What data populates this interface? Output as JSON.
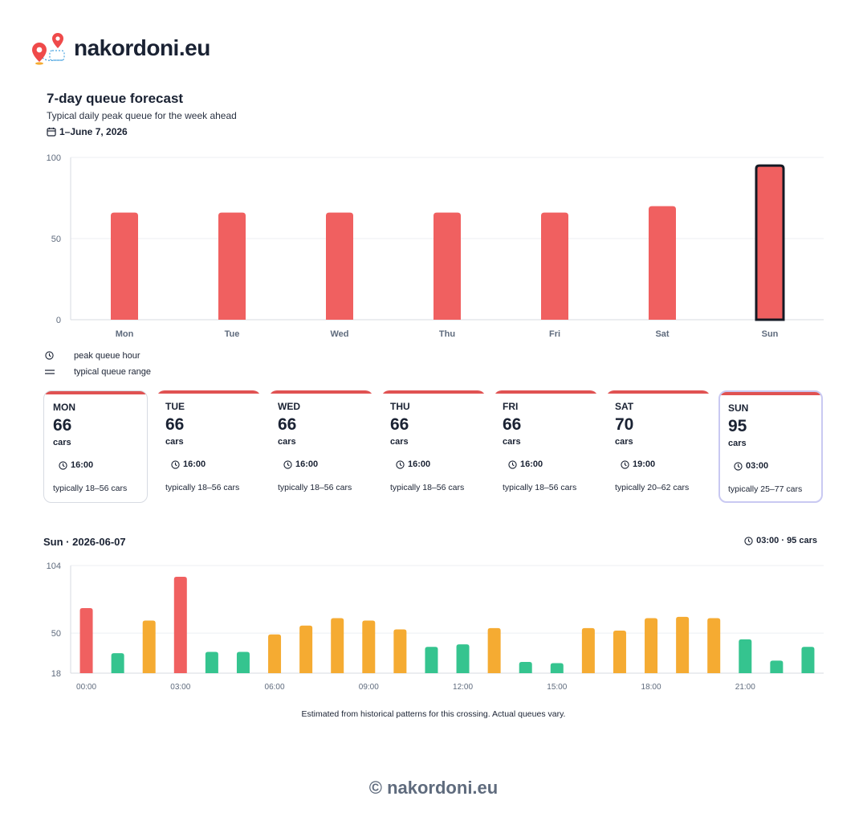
{
  "brand": {
    "name": "nakordoni.eu",
    "logo_icon": "map-pins-icon"
  },
  "forecast": {
    "title": "7-day queue forecast",
    "subtitle": "Typical daily peak queue for the week ahead",
    "date_range": "1–June 7, 2026",
    "calendar_icon": "calendar-icon"
  },
  "chart_data": [
    {
      "type": "bar",
      "categories": [
        "Mon",
        "Tue",
        "Wed",
        "Thu",
        "Fri",
        "Sat",
        "Sun"
      ],
      "values": [
        66,
        66,
        66,
        66,
        66,
        70,
        95
      ],
      "ylim": [
        0,
        100
      ],
      "yticks": [
        "0",
        "50",
        "100"
      ],
      "selected_category": "Sun",
      "bar_color": "#f06060",
      "grid": true
    },
    {
      "type": "bar",
      "categories": [
        "00:00",
        "01:00",
        "02:00",
        "03:00",
        "04:00",
        "05:00",
        "06:00",
        "07:00",
        "08:00",
        "09:00",
        "10:00",
        "11:00",
        "12:00",
        "13:00",
        "14:00",
        "15:00",
        "16:00",
        "17:00",
        "18:00",
        "19:00",
        "20:00",
        "21:00",
        "22:00",
        "23:00"
      ],
      "x_tick_labels": [
        "00:00",
        "03:00",
        "06:00",
        "09:00",
        "12:00",
        "15:00",
        "18:00",
        "21:00"
      ],
      "values": [
        70,
        34,
        60,
        95,
        35,
        35,
        49,
        56,
        62,
        60,
        53,
        39,
        41,
        54,
        27,
        26,
        54,
        52,
        62,
        63,
        62,
        45,
        28,
        39
      ],
      "levels": [
        "red",
        "green",
        "orange",
        "red",
        "green",
        "green",
        "orange",
        "orange",
        "orange",
        "orange",
        "orange",
        "green",
        "green",
        "orange",
        "green",
        "green",
        "orange",
        "orange",
        "orange",
        "orange",
        "orange",
        "green",
        "green",
        "green"
      ],
      "ylim": [
        18,
        104
      ],
      "yticks": [
        "18",
        "50",
        "104"
      ],
      "colors": {
        "red": "#f06060",
        "orange": "#f5ab32",
        "green": "#35c48f"
      },
      "grid": true
    }
  ],
  "legend": {
    "peak_hour": {
      "icon": "clock-icon",
      "label": "peak queue hour"
    },
    "range": {
      "icon": "equals-icon",
      "label": "typical queue range"
    }
  },
  "cards": [
    {
      "day": "MON",
      "value": "66",
      "unit": "cars",
      "peak_time": "16:00",
      "range": "typically 18–56 cars"
    },
    {
      "day": "TUE",
      "value": "66",
      "unit": "cars",
      "peak_time": "16:00",
      "range": "typically 18–56 cars"
    },
    {
      "day": "WED",
      "value": "66",
      "unit": "cars",
      "peak_time": "16:00",
      "range": "typically 18–56 cars"
    },
    {
      "day": "THU",
      "value": "66",
      "unit": "cars",
      "peak_time": "16:00",
      "range": "typically 18–56 cars"
    },
    {
      "day": "FRI",
      "value": "66",
      "unit": "cars",
      "peak_time": "16:00",
      "range": "typically 18–56 cars"
    },
    {
      "day": "SAT",
      "value": "70",
      "unit": "cars",
      "peak_time": "19:00",
      "range": "typically 20–62 cars"
    },
    {
      "day": "SUN",
      "value": "95",
      "unit": "cars",
      "peak_time": "03:00",
      "range": "typically 25–77 cars"
    }
  ],
  "day_detail": {
    "title": "Sun · 2026-06-07",
    "peak": "03:00 · 95 cars"
  },
  "footnote": "Estimated from historical patterns for this crossing. Actual queues vary.",
  "copyright": "© nakordoni.eu"
}
